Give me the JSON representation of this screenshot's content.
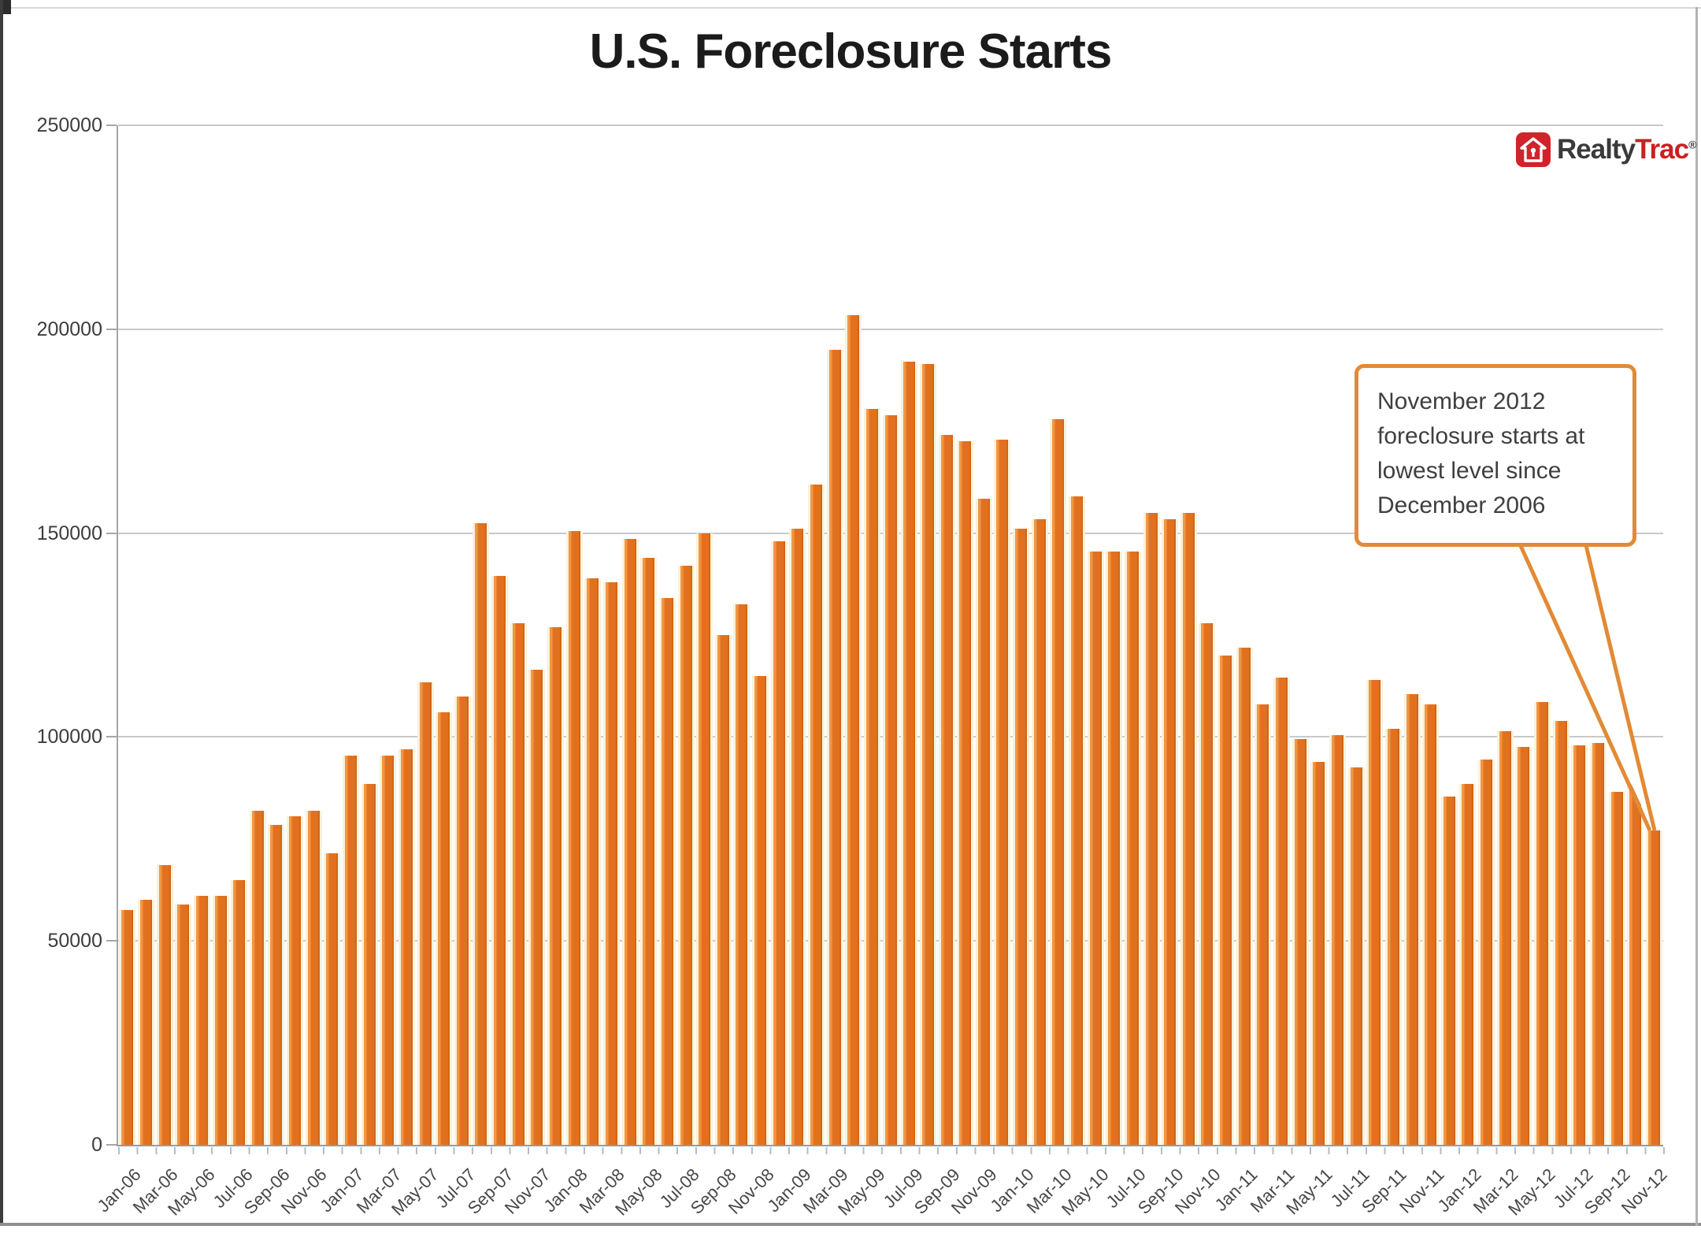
{
  "page": {
    "title": "U.S. Foreclosure Starts"
  },
  "logo": {
    "realty": "Realty",
    "trac": "Trac",
    "registered": "®"
  },
  "annotation": {
    "lines": [
      "November 2012",
      "foreclosure starts at",
      "lowest level since",
      "December 2006"
    ]
  },
  "chart_data": {
    "type": "bar",
    "title": "U.S. Foreclosure Starts",
    "x": [
      "Jan-06",
      "Feb-06",
      "Mar-06",
      "Apr-06",
      "May-06",
      "Jun-06",
      "Jul-06",
      "Aug-06",
      "Sep-06",
      "Oct-06",
      "Nov-06",
      "Dec-06",
      "Jan-07",
      "Feb-07",
      "Mar-07",
      "Apr-07",
      "May-07",
      "Jun-07",
      "Jul-07",
      "Aug-07",
      "Sep-07",
      "Oct-07",
      "Nov-07",
      "Dec-07",
      "Jan-08",
      "Feb-08",
      "Mar-08",
      "Apr-08",
      "May-08",
      "Jun-08",
      "Jul-08",
      "Aug-08",
      "Sep-08",
      "Oct-08",
      "Nov-08",
      "Dec-08",
      "Jan-09",
      "Feb-09",
      "Mar-09",
      "Apr-09",
      "May-09",
      "Jun-09",
      "Jul-09",
      "Aug-09",
      "Sep-09",
      "Oct-09",
      "Nov-09",
      "Dec-09",
      "Jan-10",
      "Feb-10",
      "Mar-10",
      "Apr-10",
      "May-10",
      "Jun-10",
      "Jul-10",
      "Aug-10",
      "Sep-10",
      "Oct-10",
      "Nov-10",
      "Dec-10",
      "Jan-11",
      "Feb-11",
      "Mar-11",
      "Apr-11",
      "May-11",
      "Jun-11",
      "Jul-11",
      "Aug-11",
      "Sep-11",
      "Oct-11",
      "Nov-11",
      "Dec-11",
      "Jan-12",
      "Feb-12",
      "Mar-12",
      "Apr-12",
      "May-12",
      "Jun-12",
      "Jul-12",
      "Aug-12",
      "Sep-12",
      "Oct-12",
      "Nov-12"
    ],
    "values": [
      57500,
      60000,
      68500,
      59000,
      61000,
      61000,
      65000,
      82000,
      78500,
      80500,
      82000,
      71500,
      95500,
      88500,
      95500,
      97000,
      113500,
      106000,
      110000,
      152500,
      139500,
      128000,
      116500,
      127000,
      150500,
      139000,
      138000,
      148500,
      144000,
      134000,
      142000,
      150000,
      125000,
      132500,
      115000,
      148000,
      151000,
      162000,
      195000,
      203500,
      180500,
      179000,
      192000,
      191500,
      174000,
      172500,
      158500,
      173000,
      151000,
      153500,
      178000,
      159000,
      145500,
      145500,
      145500,
      155000,
      153500,
      155000,
      128000,
      120000,
      122000,
      108000,
      114500,
      99500,
      94000,
      100500,
      92500,
      114000,
      102000,
      110500,
      108000,
      85500,
      88500,
      94500,
      101500,
      97500,
      108500,
      104000,
      98000,
      98500,
      86500,
      88500,
      77000
    ],
    "x_tick_labels": [
      "Jan-06",
      "Mar-06",
      "May-06",
      "Jul-06",
      "Sep-06",
      "Nov-06",
      "Jan-07",
      "Mar-07",
      "May-07",
      "Jul-07",
      "Sep-07",
      "Nov-07",
      "Jan-08",
      "Mar-08",
      "May-08",
      "Jul-08",
      "Sep-08",
      "Nov-08",
      "Jan-09",
      "Mar-09",
      "May-09",
      "Jul-09",
      "Sep-09",
      "Nov-09",
      "Jan-10",
      "Mar-10",
      "May-10",
      "Jul-10",
      "Sep-10",
      "Nov-10",
      "Jan-11",
      "Mar-11",
      "May-11",
      "Jul-11",
      "Sep-11",
      "Nov-11",
      "Jan-12",
      "Mar-12",
      "May-12",
      "Jul-12",
      "Sep-12",
      "Nov-12"
    ],
    "ylim": [
      0,
      250000
    ],
    "yticks": [
      0,
      50000,
      100000,
      150000,
      200000,
      250000
    ],
    "grid": "horizontal",
    "legend": "none",
    "bar_color": "#e2711f",
    "bar_highlight_color": "#f09a49",
    "bar_gap_halo_color": "#faf1da",
    "annotation_text": "November 2012 foreclosure starts at lowest level since December 2006",
    "source_logo": "RealtyTrac"
  }
}
